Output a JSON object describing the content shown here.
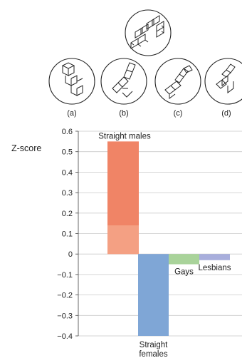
{
  "figure": {
    "answer_options": [
      "(a)",
      "(b)",
      "(c)",
      "(d)"
    ]
  },
  "chart_data": {
    "type": "bar",
    "ylabel": "Z-score",
    "xlabel": "",
    "title": "",
    "ylim": [
      -0.4,
      0.6
    ],
    "yticks": [
      0.6,
      0.5,
      0.4,
      0.3,
      0.2,
      0.1,
      0,
      -0.1,
      -0.2,
      -0.3,
      -0.4
    ],
    "ytick_labels": [
      "0.6",
      "0.5",
      "0.4",
      "0.3",
      "0.2",
      "0.1",
      "0",
      "−0.1",
      "−0.2",
      "−0.3",
      "−0.4"
    ],
    "grid": true,
    "bars": [
      {
        "label": "Straight males",
        "value": 0.55,
        "lower_segment_top": 0.14,
        "color": "#f08466",
        "lower_color": "#f4a083",
        "label_position": "top"
      },
      {
        "label_lines": [
          "Straight",
          "females"
        ],
        "value": -0.4,
        "color": "#7fa6d6",
        "label_position": "below"
      },
      {
        "label": "Gays",
        "value": -0.05,
        "color": "#a9d39a",
        "label_position": "inside-below"
      },
      {
        "label": "Lesbians",
        "value": -0.03,
        "color": "#a8aedc",
        "label_position": "inside-below"
      }
    ]
  }
}
